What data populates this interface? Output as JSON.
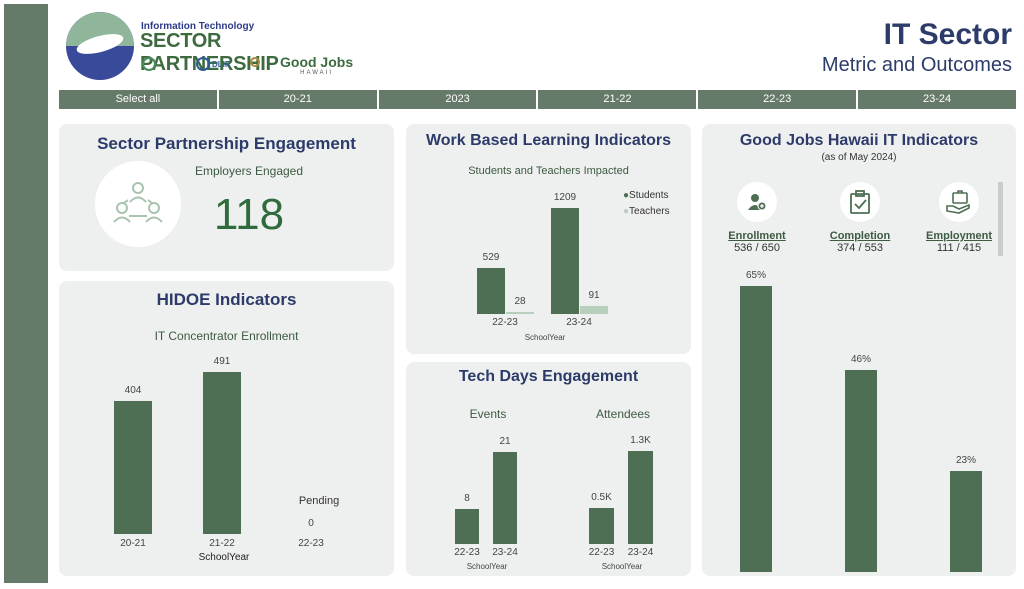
{
  "brand": {
    "line1": "Information Technology",
    "line2": "SECTOR PARTNERSHIP",
    "partners": [
      "DLIR",
      "Good Jobs",
      "HAWAII"
    ]
  },
  "header": {
    "title": "IT Sector",
    "subtitle": "Metric and Outcomes"
  },
  "filters": [
    "Select all",
    "20-21",
    "2023",
    "21-22",
    "22-23",
    "23-24"
  ],
  "engagement": {
    "title": "Sector Partnership Engagement",
    "label": "Employers Engaged",
    "value": "118"
  },
  "hidoe": {
    "title": "HIDOE Indicators",
    "subtitle": "IT Concentrator Enrollment",
    "pending_label": "Pending",
    "axis_title": "SchoolYear"
  },
  "wbl": {
    "title": "Work Based Learning Indicators",
    "subtitle": "Students and Teachers Impacted",
    "legend": [
      "Students",
      "Teachers"
    ],
    "axis_title": "SchoolYear"
  },
  "techdays": {
    "title": "Tech Days Engagement",
    "events_label": "Events",
    "attendees_label": "Attendees",
    "axis_title": "SchoolYear"
  },
  "goodjobs": {
    "title": "Good Jobs Hawaii IT Indicators",
    "subtitle": "(as of May 2024)",
    "indicators": [
      {
        "label": "Enrollment",
        "value": "536 / 650"
      },
      {
        "label": "Completion",
        "value": "374 / 553"
      },
      {
        "label": "Employment",
        "value": "111 / 415"
      }
    ]
  },
  "colors": {
    "bar": "#4e6f53",
    "bar_light": "#b9cfbd",
    "title": "#2d3b6a",
    "sidebar": "#667a69"
  },
  "chart_data": [
    {
      "type": "bar",
      "categories": [
        "20-21",
        "21-22",
        "22-23"
      ],
      "values": [
        404,
        491,
        0
      ],
      "value_labels": [
        "404",
        "491",
        "0"
      ],
      "title": "IT Concentrator Enrollment",
      "xlabel": "SchoolYear"
    },
    {
      "type": "bar",
      "categories": [
        "22-23",
        "23-24"
      ],
      "series": [
        {
          "name": "Students",
          "values": [
            529,
            1209
          ]
        },
        {
          "name": "Teachers",
          "values": [
            28,
            91
          ]
        }
      ],
      "title": "Students and Teachers Impacted",
      "xlabel": "SchoolYear"
    },
    {
      "type": "bar",
      "categories": [
        "22-23",
        "23-24"
      ],
      "values": [
        8,
        21
      ],
      "value_labels": [
        "8",
        "21"
      ],
      "title": "Events",
      "xlabel": "SchoolYear"
    },
    {
      "type": "bar",
      "categories": [
        "22-23",
        "23-24"
      ],
      "values": [
        500,
        1300
      ],
      "value_labels": [
        "0.5K",
        "1.3K"
      ],
      "title": "Attendees",
      "xlabel": "SchoolYear"
    },
    {
      "type": "bar",
      "categories": [
        "Enrollment",
        "Completion",
        "Employment"
      ],
      "values": [
        65,
        46,
        23
      ],
      "value_labels": [
        "65%",
        "46%",
        "23%"
      ],
      "title": "Good Jobs Hawaii IT Indicators"
    }
  ]
}
